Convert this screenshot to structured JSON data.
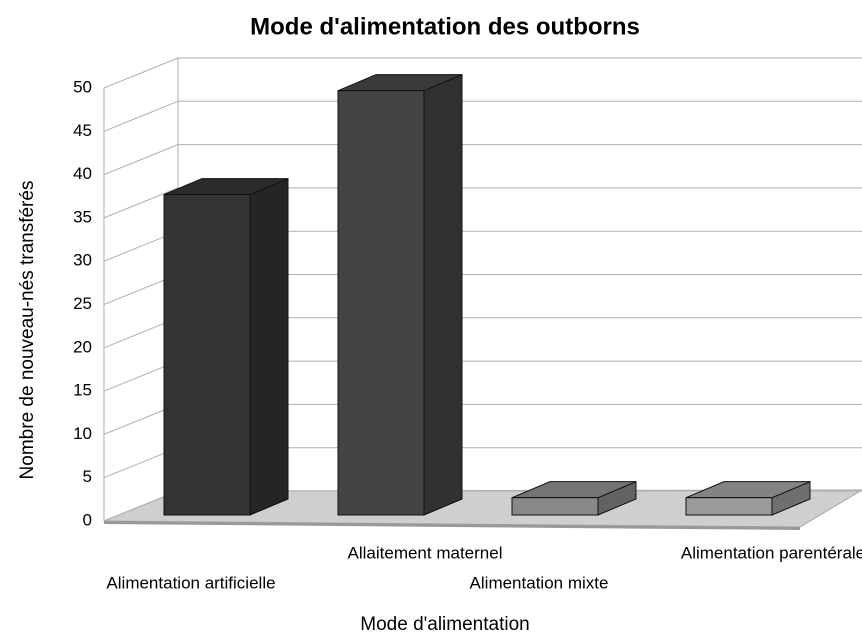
{
  "chart_data": {
    "type": "bar3d",
    "title": "Mode d'alimentation des outborns",
    "x_label": "Mode d'alimentation",
    "y_label": "Nombre de nouveau-nés transférés",
    "categories": [
      "Alimentation artificielle",
      "Allaitement maternel",
      "Alimentation mixte",
      "Alimentation parentérale"
    ],
    "values": [
      37,
      49,
      2,
      2
    ],
    "colors": [
      "#333333",
      "#444444",
      "#888888",
      "#9a9a9a"
    ],
    "ylim": [
      0,
      50
    ],
    "yticks": [
      0,
      5,
      10,
      15,
      20,
      25,
      30,
      35,
      40,
      45,
      50
    ],
    "grid": true
  }
}
